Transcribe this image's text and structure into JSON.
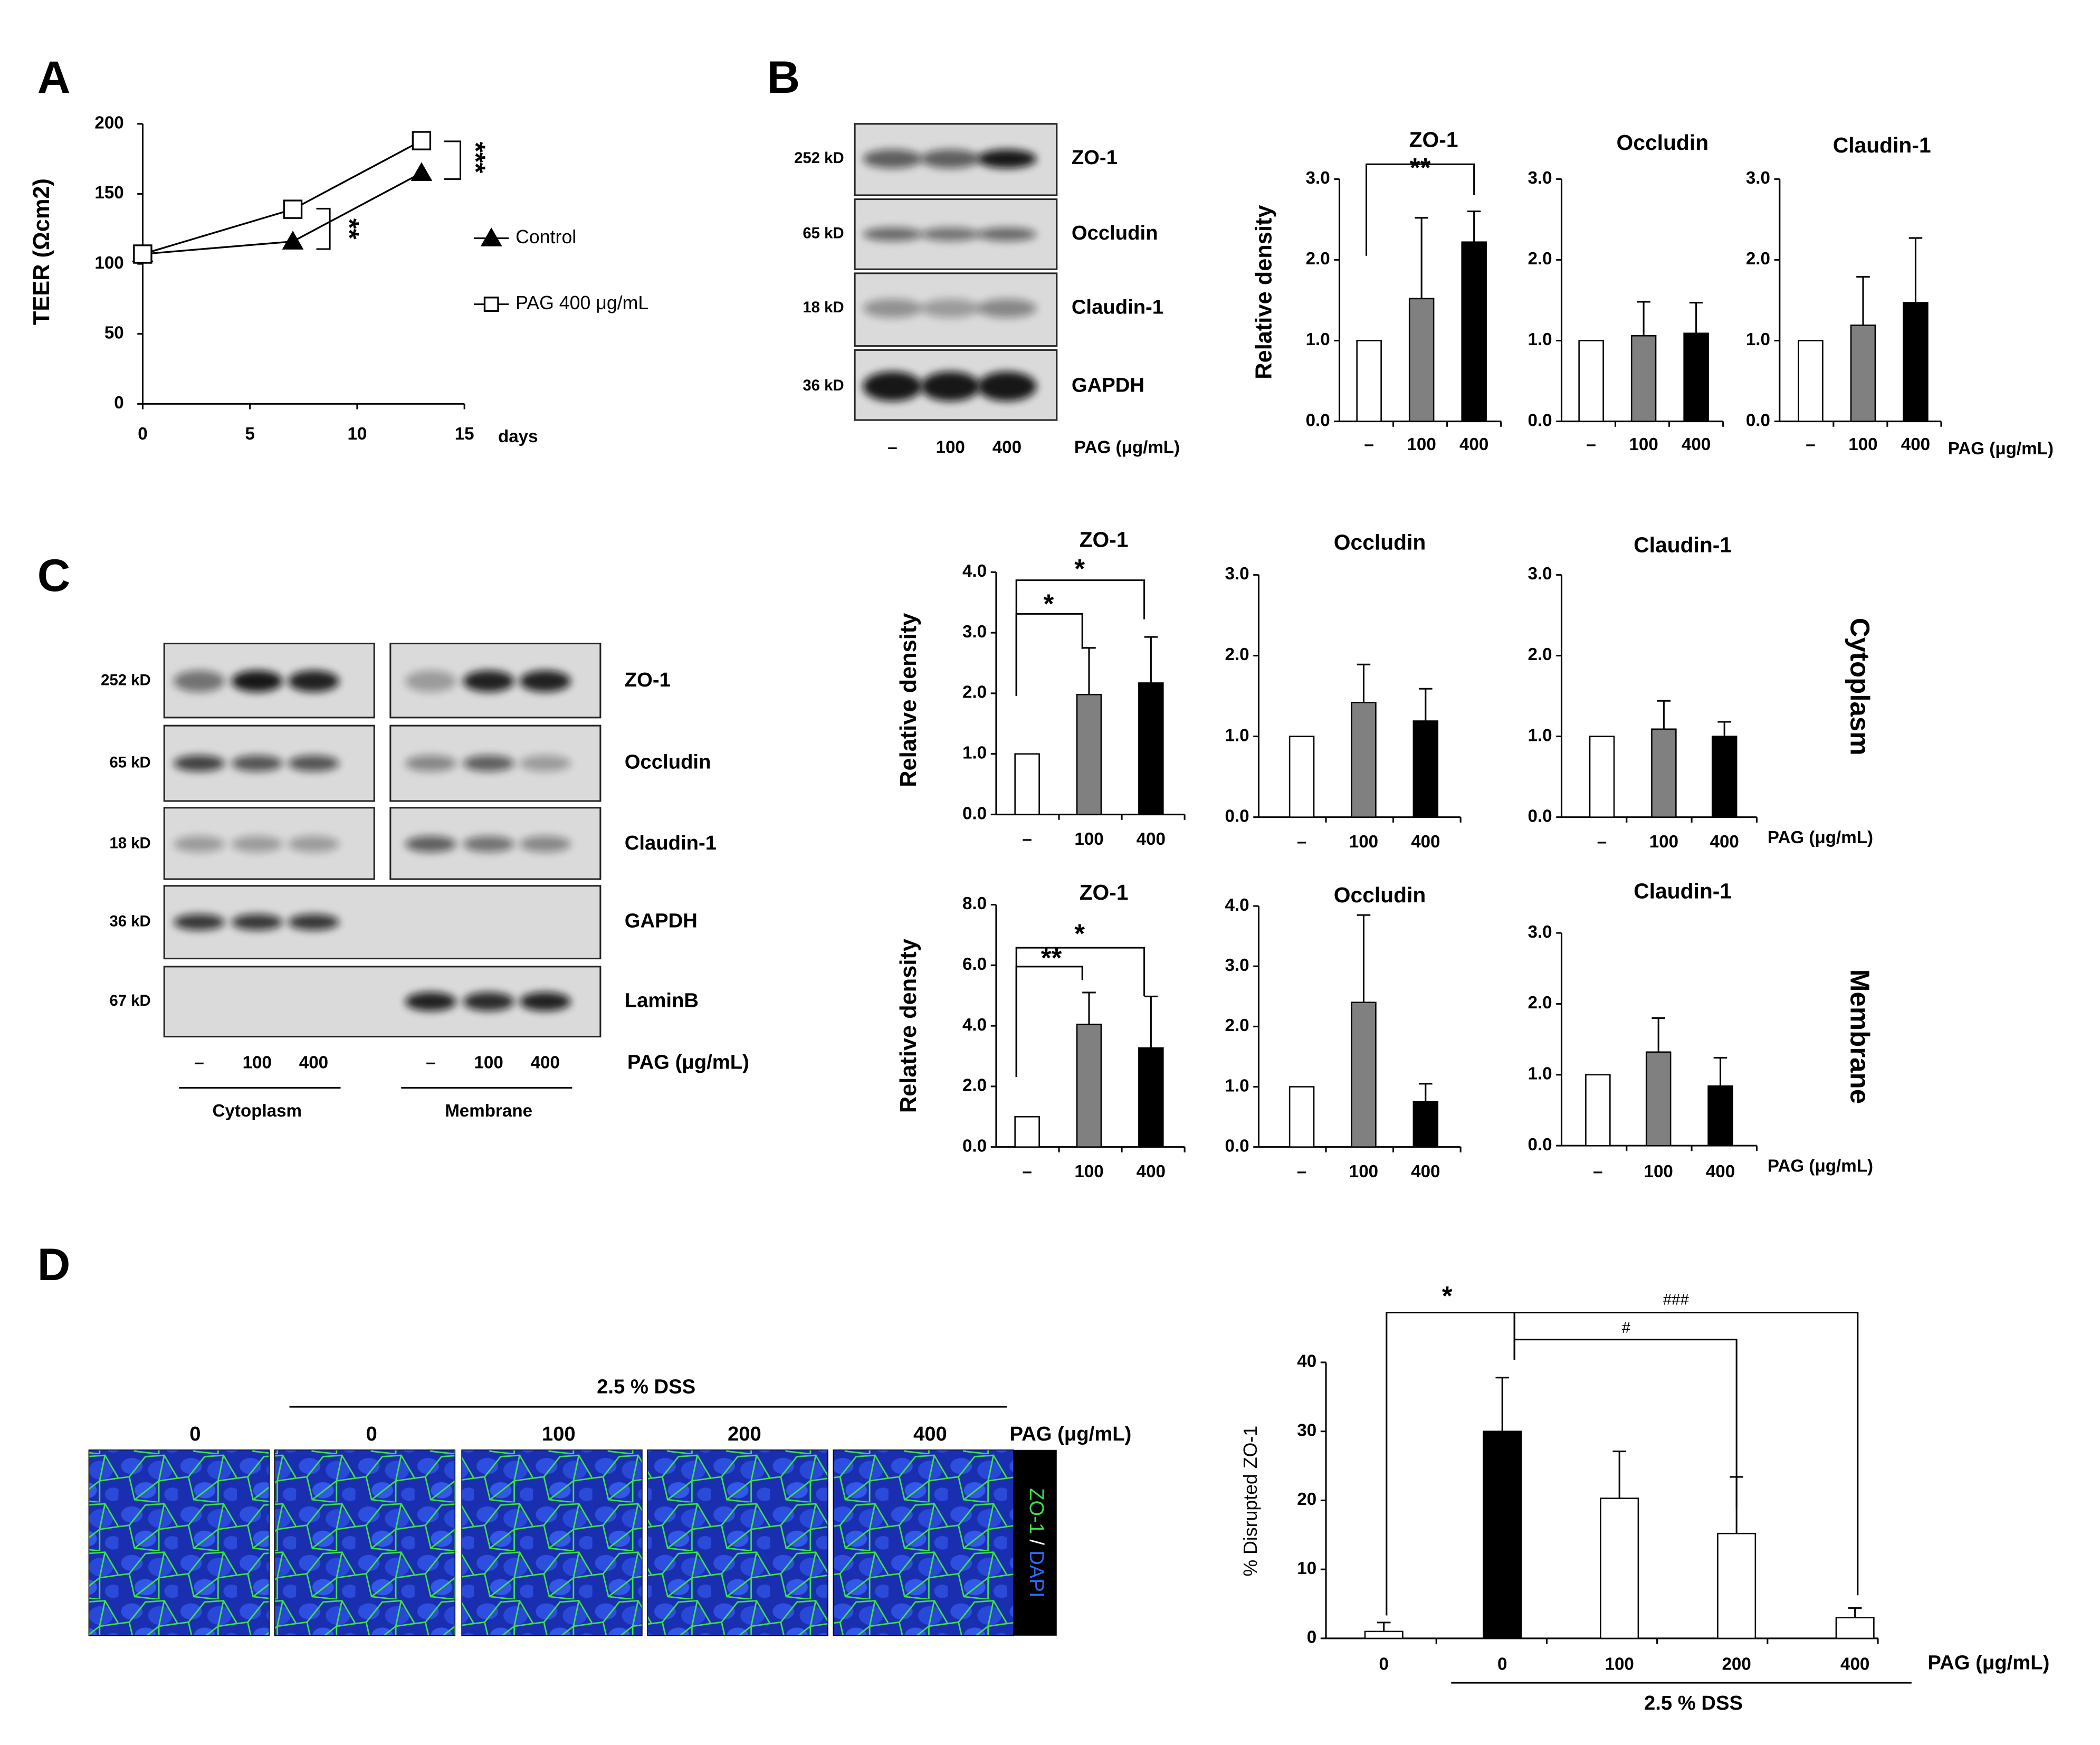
{
  "panel_letters": [
    "A",
    "B",
    "C",
    "D"
  ],
  "panel_b_blot": {
    "kd": [
      "252 kD",
      "65 kD",
      "18 kD",
      "36 kD"
    ],
    "proteins": [
      "ZO-1",
      "Occludin",
      "Claudin-1",
      "GAPDH"
    ],
    "lanes": [
      "–",
      "100",
      "400"
    ],
    "treatment": "PAG (μg/mL)"
  },
  "panel_c_blot": {
    "kd": [
      "252 kD",
      "65 kD",
      "18 kD",
      "36 kD",
      "67 kD"
    ],
    "proteins": [
      "ZO-1",
      "Occludin",
      "Claudin-1",
      "GAPDH",
      "LaminB"
    ],
    "lanes_cytoplasm": [
      "–",
      "100",
      "400"
    ],
    "lanes_membrane": [
      "–",
      "100",
      "400"
    ],
    "treatment": "PAG (μg/mL)",
    "fractions": [
      "Cytoplasm",
      "Membrane"
    ]
  },
  "panel_c_rows": [
    "Cytoplasm",
    "Membrane"
  ],
  "panel_d_images": {
    "group": "2.5 % DSS",
    "doses": [
      "0",
      "0",
      "100",
      "200",
      "400"
    ],
    "treatment": "PAG (μg/mL)",
    "stain": {
      "marker": "ZO-1",
      "separator": "/",
      "nucleus": "DAPI"
    }
  },
  "chart_data": [
    {
      "type": "line",
      "ylabel": "TEER (Ωcm2)",
      "xlabel": "days",
      "x": [
        0,
        7,
        13
      ],
      "series": [
        {
          "name": "Control",
          "color": "#000000",
          "marker": "triangle",
          "values": [
            107,
            116,
            165
          ]
        },
        {
          "name": "PAG 400 μg/mL",
          "color": "#000000",
          "marker": "square",
          "values": [
            107,
            139,
            188
          ]
        }
      ],
      "xlim": [
        0,
        15
      ],
      "xticks": [
        0,
        5,
        10,
        15
      ],
      "ylim": [
        0,
        200
      ],
      "yticks": [
        0,
        50,
        100,
        150,
        200
      ],
      "annotations": [
        "***",
        "**"
      ]
    },
    {
      "type": "bar",
      "title": "ZO-1",
      "ylabel": "Relative density",
      "categories": [
        "–",
        "100",
        "400"
      ],
      "values": [
        1.0,
        1.52,
        2.22
      ],
      "errors": [
        0,
        1.0,
        0.38
      ],
      "colors": [
        "#ffffff",
        "#808080",
        "#000000"
      ],
      "ylim": [
        0,
        3
      ],
      "yticks": [
        {
          "value": 0,
          "label": "0.0"
        },
        {
          "value": 1,
          "label": "1.0"
        },
        {
          "value": 2,
          "label": "2.0"
        },
        {
          "value": 3,
          "label": "3.0"
        }
      ],
      "annotations": [
        "**"
      ]
    },
    {
      "type": "bar",
      "title": "Occludin",
      "categories": [
        "–",
        "100",
        "400"
      ],
      "values": [
        1.0,
        1.06,
        1.09
      ],
      "errors": [
        0,
        0.42,
        0.38
      ],
      "colors": [
        "#ffffff",
        "#808080",
        "#000000"
      ],
      "ylim": [
        0,
        3
      ],
      "yticks": [
        {
          "value": 0,
          "label": "0.0"
        },
        {
          "value": 1,
          "label": "1.0"
        },
        {
          "value": 2,
          "label": "2.0"
        },
        {
          "value": 3,
          "label": "3.0"
        }
      ]
    },
    {
      "type": "bar",
      "title": "Claudin-1",
      "xlabel": "PAG (μg/mL)",
      "categories": [
        "–",
        "100",
        "400"
      ],
      "values": [
        1.0,
        1.19,
        1.47
      ],
      "errors": [
        0,
        0.6,
        0.8
      ],
      "colors": [
        "#ffffff",
        "#808080",
        "#000000"
      ],
      "ylim": [
        0,
        3
      ],
      "yticks": [
        {
          "value": 0,
          "label": "0.0"
        },
        {
          "value": 1,
          "label": "1.0"
        },
        {
          "value": 2,
          "label": "2.0"
        },
        {
          "value": 3,
          "label": "3.0"
        }
      ]
    },
    {
      "type": "bar",
      "title": "ZO-1",
      "ylabel": "Relative density",
      "categories": [
        "–",
        "100",
        "400"
      ],
      "values": [
        1.0,
        1.98,
        2.17
      ],
      "errors": [
        0,
        0.77,
        0.76
      ],
      "colors": [
        "#ffffff",
        "#808080",
        "#000000"
      ],
      "ylim": [
        0,
        4
      ],
      "yticks": [
        {
          "value": 0,
          "label": "0.0"
        },
        {
          "value": 1,
          "label": "1.0"
        },
        {
          "value": 2,
          "label": "2.0"
        },
        {
          "value": 3,
          "label": "3.0"
        },
        {
          "value": 4,
          "label": "4.0"
        }
      ],
      "annotations": [
        "*",
        "*"
      ]
    },
    {
      "type": "bar",
      "title": "Occludin",
      "categories": [
        "–",
        "100",
        "400"
      ],
      "values": [
        1.0,
        1.42,
        1.19
      ],
      "errors": [
        0,
        0.47,
        0.4
      ],
      "colors": [
        "#ffffff",
        "#808080",
        "#000000"
      ],
      "ylim": [
        0,
        3
      ],
      "yticks": [
        {
          "value": 0,
          "label": "0.0"
        },
        {
          "value": 1,
          "label": "1.0"
        },
        {
          "value": 2,
          "label": "2.0"
        },
        {
          "value": 3,
          "label": "3.0"
        }
      ]
    },
    {
      "type": "bar",
      "title": "Claudin-1",
      "xlabel": "PAG (μg/mL)",
      "categories": [
        "–",
        "100",
        "400"
      ],
      "values": [
        1.0,
        1.09,
        1.0
      ],
      "errors": [
        0,
        0.35,
        0.18
      ],
      "colors": [
        "#ffffff",
        "#808080",
        "#000000"
      ],
      "ylim": [
        0,
        3
      ],
      "yticks": [
        {
          "value": 0,
          "label": "0.0"
        },
        {
          "value": 1,
          "label": "1.0"
        },
        {
          "value": 2,
          "label": "2.0"
        },
        {
          "value": 3,
          "label": "3.0"
        }
      ]
    },
    {
      "type": "bar",
      "title": "ZO-1",
      "ylabel": "Relative density",
      "categories": [
        "–",
        "100",
        "400"
      ],
      "values": [
        1.0,
        4.05,
        3.27
      ],
      "errors": [
        0,
        1.05,
        1.7
      ],
      "colors": [
        "#ffffff",
        "#808080",
        "#000000"
      ],
      "ylim": [
        0,
        8
      ],
      "yticks": [
        {
          "value": 0,
          "label": "0.0"
        },
        {
          "value": 2,
          "label": "2.0"
        },
        {
          "value": 4,
          "label": "4.0"
        },
        {
          "value": 6,
          "label": "6.0"
        },
        {
          "value": 8,
          "label": "8.0"
        }
      ],
      "annotations": [
        "**",
        "*"
      ]
    },
    {
      "type": "bar",
      "title": "Occludin",
      "categories": [
        "–",
        "100",
        "400"
      ],
      "values": [
        1.0,
        2.4,
        0.75
      ],
      "errors": [
        0,
        1.45,
        0.3
      ],
      "colors": [
        "#ffffff",
        "#808080",
        "#000000"
      ],
      "ylim": [
        0,
        4
      ],
      "yticks": [
        {
          "value": 0,
          "label": "0.0"
        },
        {
          "value": 1,
          "label": "1.0"
        },
        {
          "value": 2,
          "label": "2.0"
        },
        {
          "value": 3,
          "label": "3.0"
        },
        {
          "value": 4,
          "label": "4.0"
        }
      ]
    },
    {
      "type": "bar",
      "title": "Claudin-1",
      "xlabel": "PAG (μg/mL)",
      "categories": [
        "–",
        "100",
        "400"
      ],
      "values": [
        1.0,
        1.32,
        0.84
      ],
      "errors": [
        0,
        0.48,
        0.4
      ],
      "colors": [
        "#ffffff",
        "#808080",
        "#000000"
      ],
      "ylim": [
        0,
        3
      ],
      "yticks": [
        {
          "value": 0,
          "label": "0.0"
        },
        {
          "value": 1,
          "label": "1.0"
        },
        {
          "value": 2,
          "label": "2.0"
        },
        {
          "value": 3,
          "label": "3.0"
        }
      ]
    },
    {
      "type": "bar",
      "ylabel": "% Disrupted ZO-1",
      "xlabel": "PAG (μg/mL)",
      "group_label": "2.5 % DSS",
      "categories": [
        "0",
        "0",
        "100",
        "200",
        "400"
      ],
      "values": [
        1.0,
        30.0,
        20.3,
        15.2,
        3.0
      ],
      "errors": [
        1.3,
        7.8,
        6.8,
        8.2,
        1.4
      ],
      "colors": [
        "#ffffff",
        "#000000",
        "#ffffff",
        "#ffffff",
        "#ffffff"
      ],
      "ylim": [
        0,
        40
      ],
      "yticks": [
        0,
        10,
        20,
        30,
        40
      ],
      "annotations": [
        "*",
        "###",
        "#"
      ]
    }
  ]
}
